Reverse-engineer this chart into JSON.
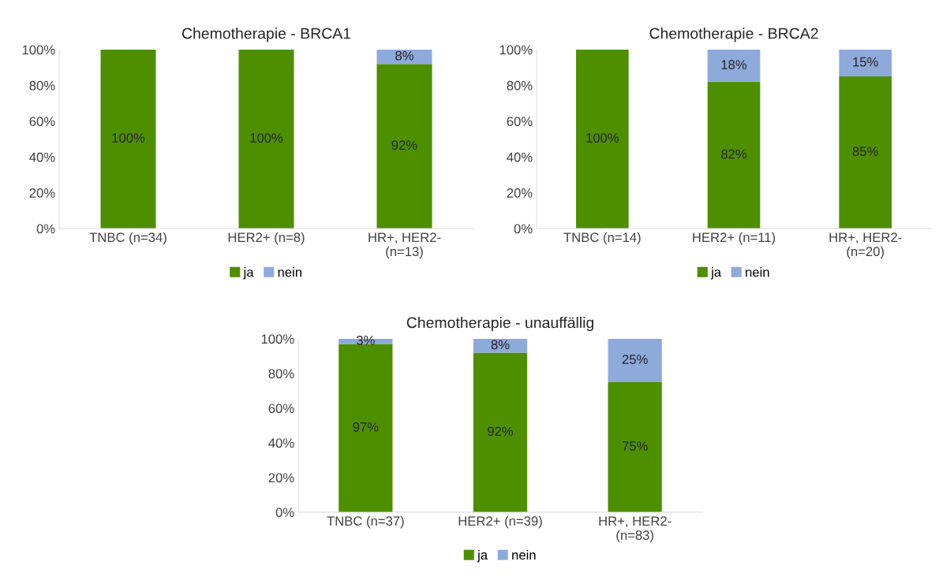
{
  "chart_data": [
    {
      "type": "bar",
      "title": "Chemotherapie - BRCA1",
      "stacked": true,
      "categories": [
        "TNBC (n=34)",
        "HER2+ (n=8)",
        "HR+, HER2-\n(n=13)"
      ],
      "ylim": [
        0,
        100
      ],
      "yticks": [
        {
          "value": 0,
          "label": "0%"
        },
        {
          "value": 20,
          "label": "20%"
        },
        {
          "value": 40,
          "label": "40%"
        },
        {
          "value": 60,
          "label": "60%"
        },
        {
          "value": 80,
          "label": "80%"
        },
        {
          "value": 100,
          "label": "100%"
        }
      ],
      "legend": "bottom",
      "grid": false,
      "series": [
        {
          "name": "ja",
          "color": "#4e8f00",
          "values": [
            100,
            100,
            92
          ],
          "value_labels": [
            "100%",
            "100%",
            "92%"
          ]
        },
        {
          "name": "nein",
          "color": "#8eaadb",
          "values": [
            0,
            0,
            8
          ],
          "value_labels": [
            null,
            null,
            "8%"
          ]
        }
      ]
    },
    {
      "type": "bar",
      "title": "Chemotherapie - BRCA2",
      "stacked": true,
      "categories": [
        "TNBC (n=14)",
        "HER2+ (n=11)",
        "HR+, HER2-\n(n=20)"
      ],
      "ylim": [
        0,
        100
      ],
      "yticks": [
        {
          "value": 0,
          "label": "0%"
        },
        {
          "value": 20,
          "label": "20%"
        },
        {
          "value": 40,
          "label": "40%"
        },
        {
          "value": 60,
          "label": "60%"
        },
        {
          "value": 80,
          "label": "80%"
        },
        {
          "value": 100,
          "label": "100%"
        }
      ],
      "legend": "bottom",
      "grid": false,
      "series": [
        {
          "name": "ja",
          "color": "#4e8f00",
          "values": [
            100,
            82,
            85
          ],
          "value_labels": [
            "100%",
            "82%",
            "85%"
          ]
        },
        {
          "name": "nein",
          "color": "#8eaadb",
          "values": [
            0,
            18,
            15
          ],
          "value_labels": [
            null,
            "18%",
            "15%"
          ]
        }
      ]
    },
    {
      "type": "bar",
      "title": "Chemotherapie - unauffällig",
      "stacked": true,
      "categories": [
        "TNBC (n=37)",
        "HER2+ (n=39)",
        "HR+, HER2-\n(n=83)"
      ],
      "ylim": [
        0,
        100
      ],
      "yticks": [
        {
          "value": 0,
          "label": "0%"
        },
        {
          "value": 20,
          "label": "20%"
        },
        {
          "value": 40,
          "label": "40%"
        },
        {
          "value": 60,
          "label": "60%"
        },
        {
          "value": 80,
          "label": "80%"
        },
        {
          "value": 100,
          "label": "100%"
        }
      ],
      "legend": "bottom",
      "grid": false,
      "series": [
        {
          "name": "ja",
          "color": "#4e8f00",
          "values": [
            97,
            92,
            75
          ],
          "value_labels": [
            "97%",
            "92%",
            "75%"
          ]
        },
        {
          "name": "nein",
          "color": "#8eaadb",
          "values": [
            3,
            8,
            25
          ],
          "value_labels": [
            "3%",
            "8%",
            "25%"
          ]
        }
      ]
    }
  ]
}
